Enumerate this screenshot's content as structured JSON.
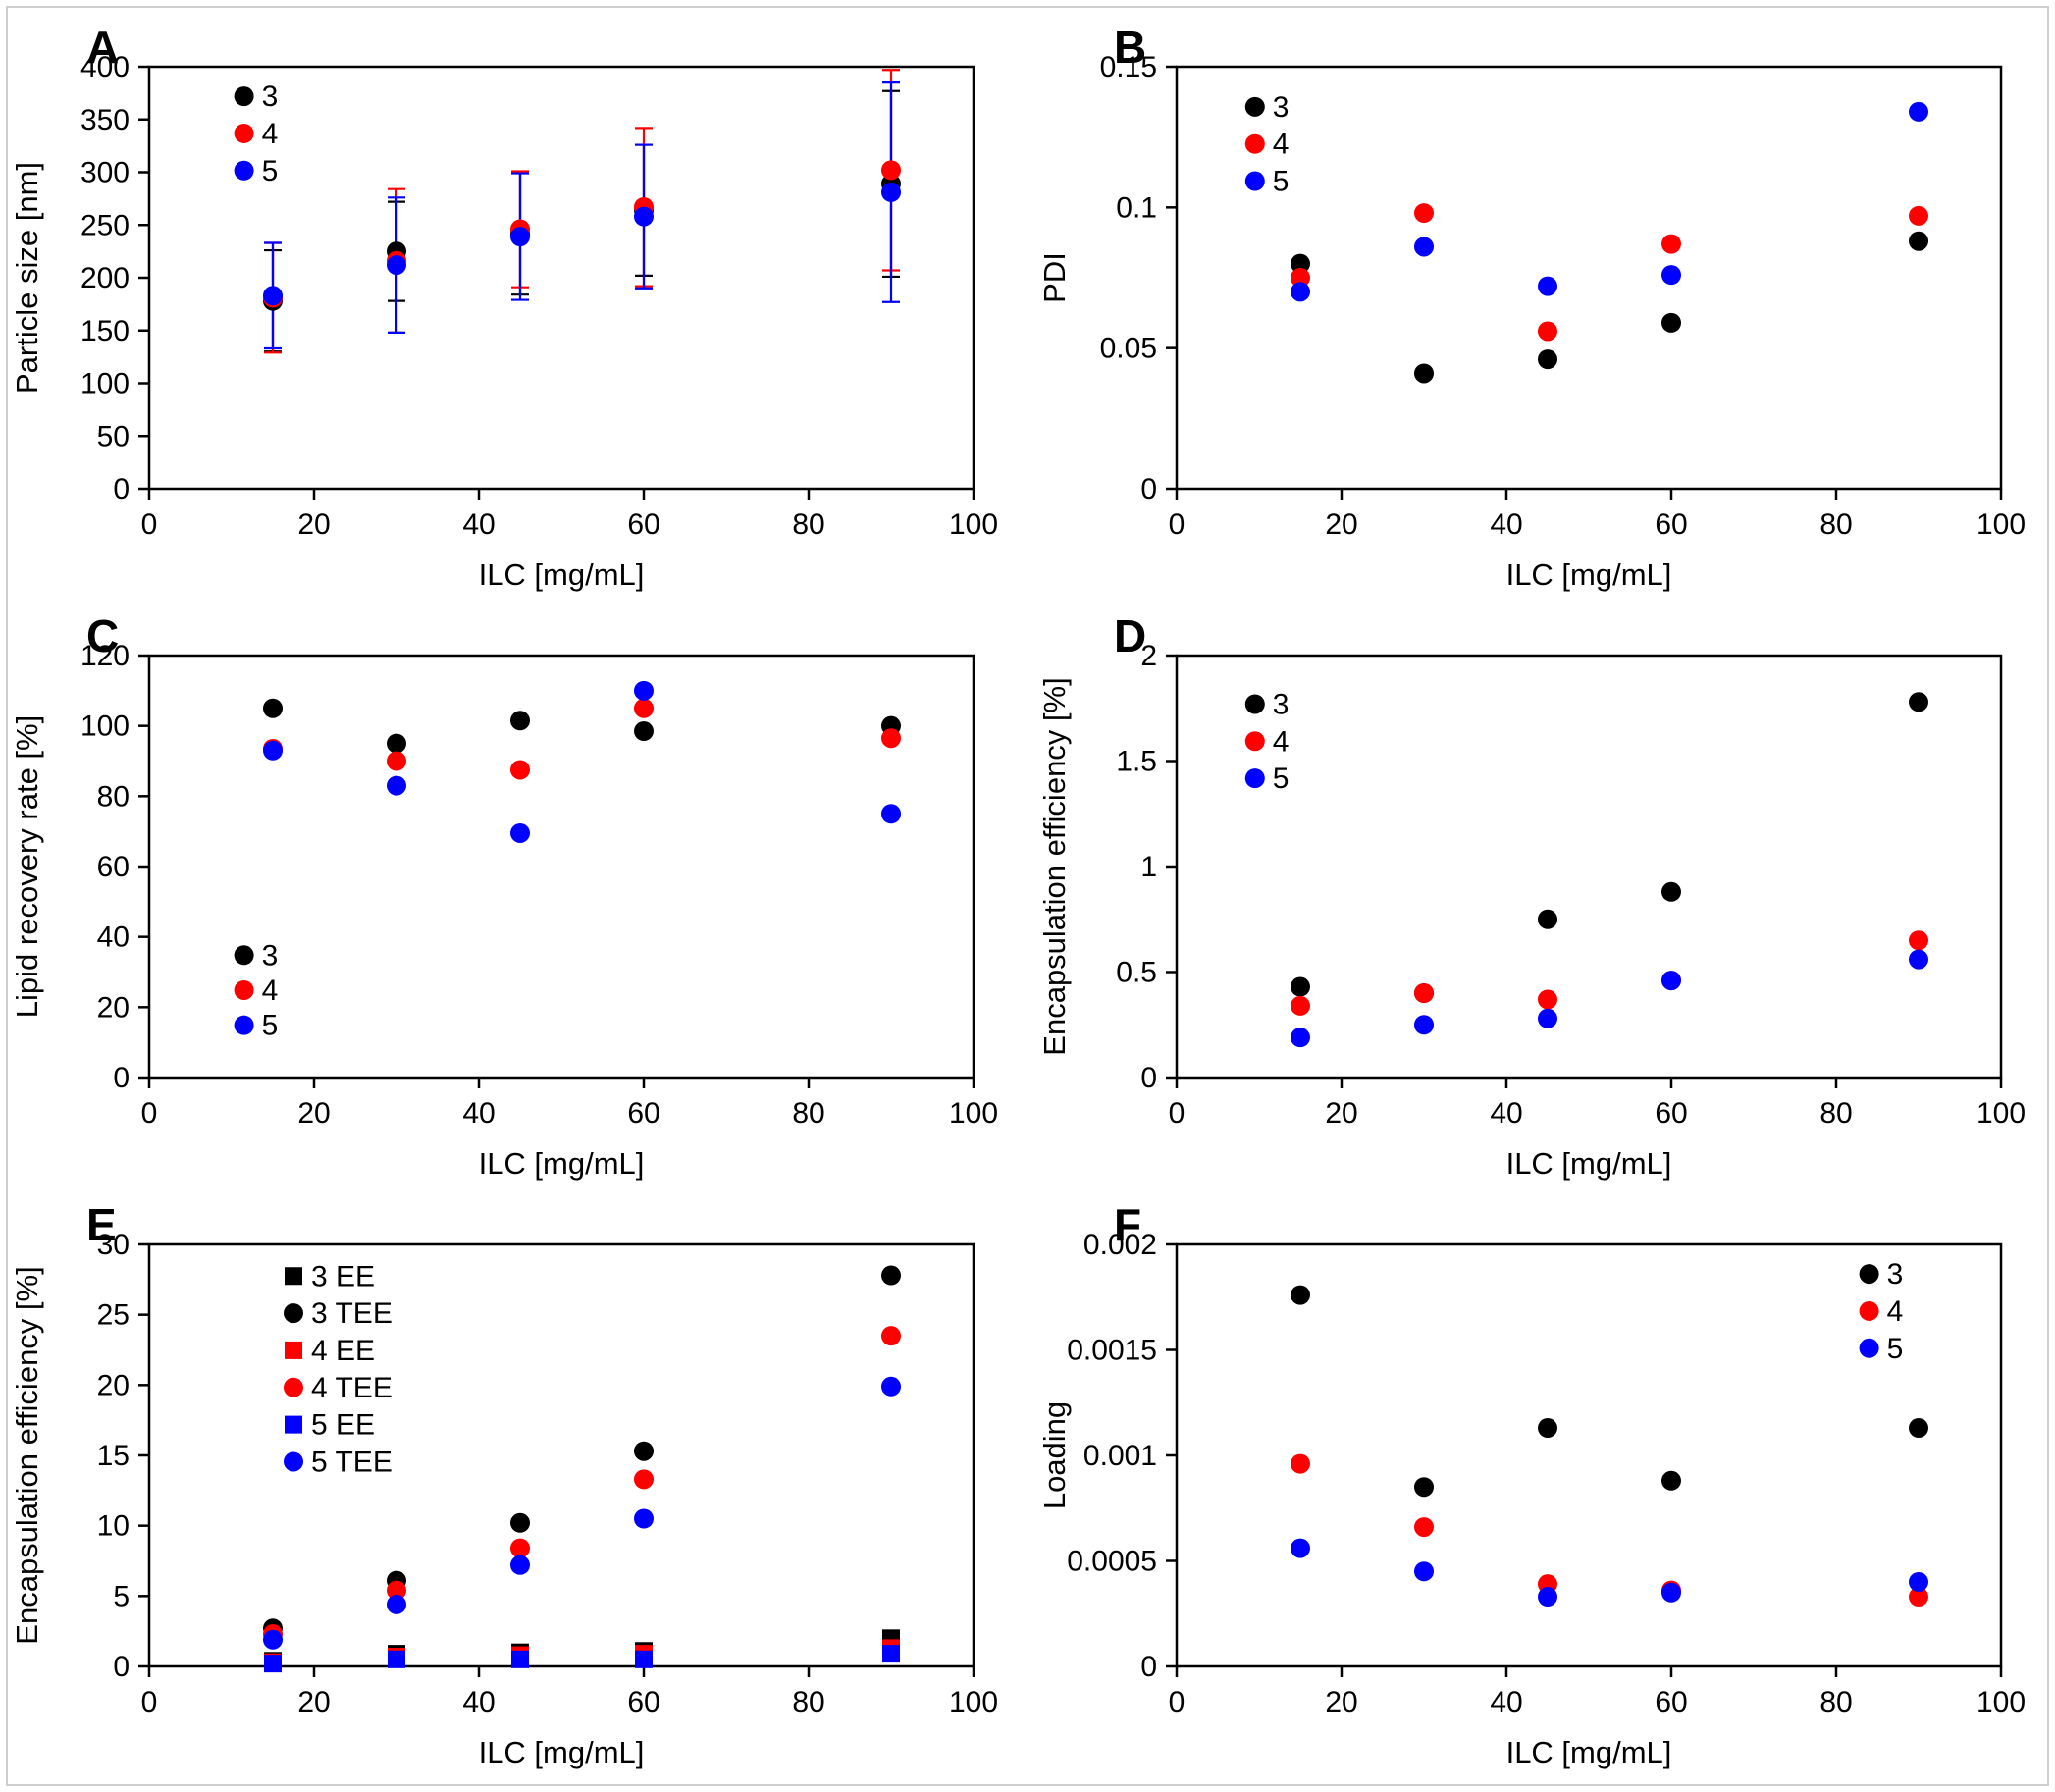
{
  "page": {
    "background": "#ffffff",
    "frame_border_color": "#cfcfcf"
  },
  "colors": {
    "series_3": "#000000",
    "series_4": "#ff0000",
    "series_5": "#0000ff",
    "axis": "#000000"
  },
  "chart_data": [
    {
      "type": "scatter",
      "panel_label": "A",
      "xlabel": "ILC [mg/mL]",
      "ylabel": "Particle size [nm]",
      "xlim": [
        0,
        100
      ],
      "ylim": [
        0,
        400
      ],
      "xtick_values": [
        0,
        20,
        40,
        60,
        80,
        100
      ],
      "xtick_labels": [
        "0",
        "20",
        "40",
        "60",
        "80",
        "100"
      ],
      "ytick_values": [
        0,
        50,
        100,
        150,
        200,
        250,
        300,
        350,
        400
      ],
      "ytick_labels": [
        "0",
        "50",
        "100",
        "150",
        "200",
        "250",
        "300",
        "350",
        "400"
      ],
      "x": [
        15,
        30,
        45,
        60,
        90
      ],
      "legend": {
        "fx": 0.115,
        "fy": 0.07,
        "dy": 0.088
      },
      "series": [
        {
          "name": "3",
          "color": "#000000",
          "marker": "circle",
          "values": [
            178,
            225,
            242,
            264,
            289
          ],
          "errors": [
            48,
            47,
            58,
            62,
            88
          ]
        },
        {
          "name": "4",
          "color": "#ff0000",
          "marker": "circle",
          "values": [
            181,
            216,
            246,
            267,
            302
          ],
          "errors": [
            52,
            68,
            55,
            75,
            95
          ]
        },
        {
          "name": "5",
          "color": "#0000ff",
          "marker": "circle",
          "values": [
            183,
            212,
            239,
            258,
            281
          ],
          "errors": [
            50,
            64,
            60,
            68,
            104
          ]
        }
      ]
    },
    {
      "type": "scatter",
      "panel_label": "B",
      "xlabel": "ILC [mg/mL]",
      "ylabel": "PDI",
      "xlim": [
        0,
        100
      ],
      "ylim": [
        0,
        0.15
      ],
      "xtick_values": [
        0,
        20,
        40,
        60,
        80,
        100
      ],
      "xtick_labels": [
        "0",
        "20",
        "40",
        "60",
        "80",
        "100"
      ],
      "ytick_values": [
        0,
        0.05,
        0.1,
        0.15
      ],
      "ytick_labels": [
        "0",
        "0.05",
        "0.1",
        "0.15"
      ],
      "x": [
        15,
        30,
        45,
        60,
        90
      ],
      "legend": {
        "fx": 0.095,
        "fy": 0.095,
        "dy": 0.088
      },
      "series": [
        {
          "name": "3",
          "color": "#000000",
          "marker": "circle",
          "values": [
            0.08,
            0.041,
            0.046,
            0.059,
            0.088
          ]
        },
        {
          "name": "4",
          "color": "#ff0000",
          "marker": "circle",
          "values": [
            0.075,
            0.098,
            0.056,
            0.087,
            0.097
          ]
        },
        {
          "name": "5",
          "color": "#0000ff",
          "marker": "circle",
          "values": [
            0.07,
            0.086,
            0.072,
            0.076,
            0.134
          ]
        }
      ]
    },
    {
      "type": "scatter",
      "panel_label": "C",
      "xlabel": "ILC [mg/mL]",
      "ylabel": "Lipid recovery rate [%]",
      "xlim": [
        0,
        100
      ],
      "ylim": [
        0,
        120
      ],
      "xtick_values": [
        0,
        20,
        40,
        60,
        80,
        100
      ],
      "xtick_labels": [
        "0",
        "20",
        "40",
        "60",
        "80",
        "100"
      ],
      "ytick_values": [
        0,
        20,
        40,
        60,
        80,
        100,
        120
      ],
      "ytick_labels": [
        "0",
        "20",
        "40",
        "60",
        "80",
        "100",
        "120"
      ],
      "x": [
        15,
        30,
        45,
        60,
        90
      ],
      "legend": {
        "fx": 0.115,
        "fy": 0.71,
        "dy": 0.083
      },
      "series": [
        {
          "name": "3",
          "color": "#000000",
          "marker": "circle",
          "values": [
            105,
            95,
            101.5,
            98.5,
            100
          ]
        },
        {
          "name": "4",
          "color": "#ff0000",
          "marker": "circle",
          "values": [
            93.5,
            90,
            87.5,
            105,
            96.5
          ]
        },
        {
          "name": "5",
          "color": "#0000ff",
          "marker": "circle",
          "values": [
            93,
            83,
            69.5,
            110,
            75
          ]
        }
      ]
    },
    {
      "type": "scatter",
      "panel_label": "D",
      "xlabel": "ILC [mg/mL]",
      "ylabel": "Encapsulation efficiency [%]",
      "xlim": [
        0,
        100
      ],
      "ylim": [
        0,
        2
      ],
      "xtick_values": [
        0,
        20,
        40,
        60,
        80,
        100
      ],
      "xtick_labels": [
        "0",
        "20",
        "40",
        "60",
        "80",
        "100"
      ],
      "ytick_values": [
        0,
        0.5,
        1,
        1.5,
        2
      ],
      "ytick_labels": [
        "0",
        "0.5",
        "1",
        "1.5",
        "2"
      ],
      "x": [
        15,
        30,
        45,
        60,
        90
      ],
      "legend": {
        "fx": 0.095,
        "fy": 0.115,
        "dy": 0.088
      },
      "series": [
        {
          "name": "3",
          "color": "#000000",
          "marker": "circle",
          "values": [
            0.43,
            0.4,
            0.75,
            0.88,
            1.78
          ]
        },
        {
          "name": "4",
          "color": "#ff0000",
          "marker": "circle",
          "values": [
            0.34,
            0.4,
            0.37,
            0.46,
            0.65
          ]
        },
        {
          "name": "5",
          "color": "#0000ff",
          "marker": "circle",
          "values": [
            0.19,
            0.25,
            0.28,
            0.46,
            0.56
          ]
        }
      ]
    },
    {
      "type": "scatter",
      "panel_label": "E",
      "xlabel": "ILC [mg/mL]",
      "ylabel": "Encapsulation efficiency [%]",
      "xlim": [
        0,
        100
      ],
      "ylim": [
        0,
        30
      ],
      "xtick_values": [
        0,
        20,
        40,
        60,
        80,
        100
      ],
      "xtick_labels": [
        "0",
        "20",
        "40",
        "60",
        "80",
        "100"
      ],
      "ytick_values": [
        0,
        5,
        10,
        15,
        20,
        25,
        30
      ],
      "ytick_labels": [
        "0",
        "5",
        "10",
        "15",
        "20",
        "25",
        "30"
      ],
      "x": [
        15,
        30,
        45,
        60,
        90
      ],
      "legend": {
        "fx": 0.175,
        "fy": 0.075,
        "dy": 0.088
      },
      "series": [
        {
          "name": "3 EE",
          "color": "#000000",
          "marker": "square",
          "values": [
            0.4,
            0.9,
            1.0,
            1.1,
            2.0
          ]
        },
        {
          "name": "3 TEE",
          "color": "#000000",
          "marker": "circle",
          "values": [
            2.7,
            6.1,
            10.2,
            15.3,
            27.8
          ]
        },
        {
          "name": "4 EE",
          "color": "#ff0000",
          "marker": "square",
          "values": [
            0.3,
            0.7,
            0.8,
            0.9,
            1.3
          ]
        },
        {
          "name": "4 TEE",
          "color": "#ff0000",
          "marker": "circle",
          "values": [
            2.3,
            5.4,
            8.4,
            13.3,
            23.5
          ]
        },
        {
          "name": "5 EE",
          "color": "#0000ff",
          "marker": "square",
          "values": [
            0.2,
            0.5,
            0.5,
            0.5,
            0.9
          ]
        },
        {
          "name": "5 TEE",
          "color": "#0000ff",
          "marker": "circle",
          "values": [
            1.9,
            4.4,
            7.2,
            10.5,
            19.9
          ]
        }
      ]
    },
    {
      "type": "scatter",
      "panel_label": "F",
      "xlabel": "ILC [mg/mL]",
      "ylabel": "Loading",
      "xlim": [
        0,
        100
      ],
      "ylim": [
        0,
        0.002
      ],
      "xtick_values": [
        0,
        20,
        40,
        60,
        80,
        100
      ],
      "xtick_labels": [
        "0",
        "20",
        "40",
        "60",
        "80",
        "100"
      ],
      "ytick_values": [
        0,
        0.0005,
        0.001,
        0.0015,
        0.002
      ],
      "ytick_labels": [
        "0",
        "0.0005",
        "0.001",
        "0.0015",
        "0.002"
      ],
      "x": [
        15,
        30,
        45,
        60,
        90
      ],
      "legend": {
        "fx": 0.84,
        "fy": 0.07,
        "dy": 0.088
      },
      "series": [
        {
          "name": "3",
          "color": "#000000",
          "marker": "circle",
          "values": [
            0.00176,
            0.00085,
            0.00113,
            0.00088,
            0.00113
          ]
        },
        {
          "name": "4",
          "color": "#ff0000",
          "marker": "circle",
          "values": [
            0.00096,
            0.00066,
            0.00039,
            0.00036,
            0.00033
          ]
        },
        {
          "name": "5",
          "color": "#0000ff",
          "marker": "circle",
          "values": [
            0.00056,
            0.00045,
            0.00033,
            0.00035,
            0.0004
          ]
        }
      ]
    }
  ]
}
